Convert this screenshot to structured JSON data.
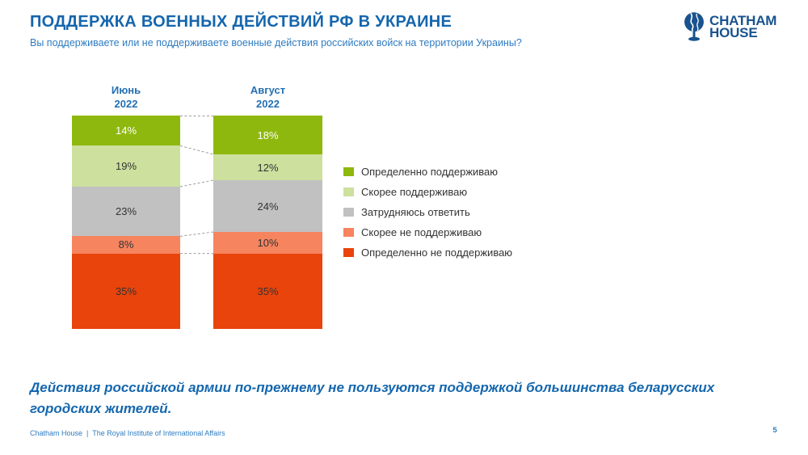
{
  "slide": {
    "title": "ПОДДЕРЖКА ВОЕННЫХ ДЕЙСТВИЙ РФ В УКРАИНЕ",
    "subtitle": "Вы поддерживаете или не поддерживаете военные действия российских войск на территории Украины?",
    "statement": "Действия российской армии по-прежнему не пользуются поддержкой большинства беларусских городских жителей.",
    "footer": "Chatham House  |  The Royal Institute of International Affairs",
    "page_number": "5"
  },
  "logo": {
    "line1": "CHATHAM",
    "line2": "HOUSE",
    "icon": "globe-icon",
    "color": "#19538F"
  },
  "chart_data": {
    "type": "bar",
    "stacked": true,
    "title": "ПОДДЕРЖКА ВОЕННЫХ ДЕЙСТВИЙ РФ В УКРАИНЕ",
    "columns": [
      {
        "month": "Июнь",
        "year": "2022"
      },
      {
        "month": "Август",
        "year": "2022"
      }
    ],
    "series": [
      {
        "name": "Определенно поддерживаю",
        "color": "#8FB80E",
        "label_color": "#FFFFFF",
        "values": [
          14,
          18
        ]
      },
      {
        "name": "Скорее поддерживаю",
        "color": "#CDE09E",
        "label_color": "#333333",
        "values": [
          19,
          12
        ]
      },
      {
        "name": "Затрудняюсь ответить",
        "color": "#C1C1C1",
        "label_color": "#333333",
        "values": [
          23,
          24
        ]
      },
      {
        "name": "Скорее не поддерживаю",
        "color": "#F6845F",
        "label_color": "#333333",
        "values": [
          8,
          10
        ]
      },
      {
        "name": "Определенно не поддерживаю",
        "color": "#E8440C",
        "label_color": "#333333",
        "values": [
          35,
          35
        ]
      }
    ],
    "value_suffix": "%",
    "value_labels_shown": true,
    "legend_position": "right",
    "connector_lines": "dashed",
    "ylim": [
      0,
      100
    ]
  }
}
